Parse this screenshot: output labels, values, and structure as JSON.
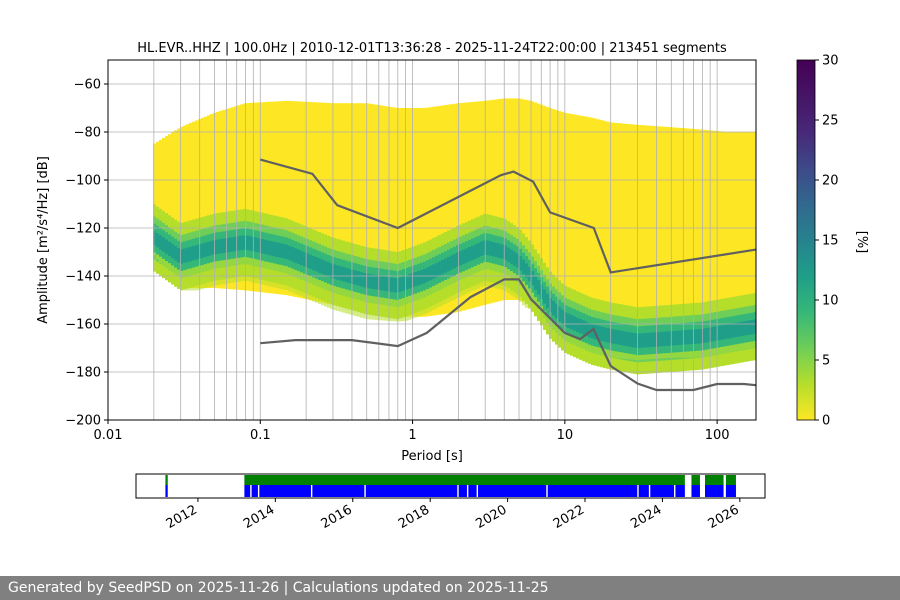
{
  "chart_data": [
    {
      "type": "heatmap",
      "title": "HL.EVR..HHZ | 100.0Hz | 2010-12-01T13:36:28 - 2025-11-24T22:00:00 | 213451 segments",
      "xlabel": "Period [s]",
      "ylabel": "Amplitude [m²/s⁴/Hz] [dB]",
      "x_scale": "log",
      "xlim": [
        0.01,
        180
      ],
      "ylim": [
        -200,
        -50
      ],
      "x_ticks": [
        0.01,
        0.1,
        1,
        10,
        100
      ],
      "x_tick_labels": [
        "0.01",
        "0.1",
        "1",
        "10",
        "100"
      ],
      "y_ticks": [
        -200,
        -180,
        -160,
        -140,
        -120,
        -100,
        -80,
        -60
      ],
      "y_tick_labels": [
        "−200",
        "−180",
        "−160",
        "−140",
        "−120",
        "−100",
        "−80",
        "−60"
      ],
      "grid": true,
      "colormap": "viridis",
      "colorbar": {
        "label": "[%]",
        "range": [
          0,
          30
        ],
        "ticks": [
          0,
          5,
          10,
          15,
          20,
          25,
          30
        ]
      },
      "density_band": {
        "period": [
          0.02,
          0.03,
          0.05,
          0.08,
          0.15,
          0.3,
          0.5,
          0.8,
          1.2,
          2,
          3,
          4,
          5,
          6,
          8,
          10,
          15,
          20,
          30,
          50,
          80,
          120,
          180
        ],
        "mode_db": [
          -124,
          -132,
          -128,
          -126,
          -130,
          -138,
          -142,
          -144,
          -140,
          -133,
          -128,
          -130,
          -134,
          -140,
          -152,
          -158,
          -163,
          -165,
          -167,
          -166,
          -165,
          -163,
          -161
        ],
        "outer_low_db": [
          -130,
          -145,
          -145,
          -146,
          -148,
          -152,
          -155,
          -157,
          -157,
          -155,
          -152,
          -150,
          -150,
          -152,
          -160,
          -166,
          -170,
          -172,
          -173,
          -172,
          -172,
          -171,
          -169
        ],
        "outer_high_db": [
          -85,
          -78,
          -72,
          -68,
          -67,
          -68,
          -68,
          -70,
          -70,
          -68,
          -67,
          -66,
          -66,
          -67,
          -70,
          -72,
          -74,
          -76,
          -77,
          -78,
          -79,
          -80,
          -80
        ],
        "core_low_db": [
          -131,
          -146,
          -146,
          -147,
          -150,
          -155,
          -158,
          -159,
          -158,
          -156,
          -153,
          -152,
          -152,
          -154,
          -162,
          -168,
          -172,
          -174,
          -175,
          -174,
          -174,
          -172,
          -170
        ]
      },
      "series": [
        {
          "x": [
            0.1,
            0.22,
            0.32,
            0.8,
            3.8,
            4.6,
            6.2,
            8,
            15.5,
            20,
            180
          ],
          "y": [
            -91.5,
            -97.4,
            -110.5,
            -120,
            -98,
            -96.5,
            -100.7,
            -113.5,
            -120,
            -138.5,
            -129
          ],
          "color": "#606060"
        },
        {
          "x": [
            0.1,
            0.17,
            0.4,
            0.8,
            1.24,
            2.4,
            4.0,
            5.0,
            6.0,
            10.0,
            12.6,
            15.4,
            20.0,
            30.0,
            40.0,
            70.0,
            100.0,
            150.0,
            180.0
          ],
          "y": [
            -168,
            -166.7,
            -166.7,
            -169.2,
            -163.7,
            -148.8,
            -141.4,
            -141.4,
            -149.7,
            -163.7,
            -166.3,
            -162.1,
            -177.5,
            -184.8,
            -187.5,
            -187.5,
            -185,
            -185,
            -185.5
          ],
          "color": "#606060"
        }
      ]
    },
    {
      "type": "timeline",
      "x_tick_labels": [
        "2012",
        "2014",
        "2016",
        "2018",
        "2020",
        "2022",
        "2024",
        "2026"
      ],
      "x_ticks": [
        2012,
        2014,
        2016,
        2018,
        2020,
        2022,
        2024,
        2026
      ],
      "xlim": [
        2010.4,
        2026.65
      ],
      "series": [
        {
          "name": "green",
          "color": "#008000",
          "coverage": [
            [
              2011.16,
              2011.22
            ],
            [
              2013.2,
              2025.9
            ]
          ]
        },
        {
          "name": "blue",
          "color": "#0000ff",
          "coverage": [
            [
              2011.16,
              2011.22
            ],
            [
              2013.2,
              2025.9
            ]
          ]
        }
      ],
      "gaps": {
        "both": [
          [
            2024.58,
            2024.75
          ],
          [
            2024.97,
            2025.1
          ],
          [
            2025.58,
            2025.64
          ]
        ],
        "blue_only": [
          2013.35,
          2013.55,
          2014.92,
          2016.3,
          2018.7,
          2018.95,
          2019.2,
          2021.0,
          2023.35,
          2023.65,
          2024.3
        ]
      }
    }
  ],
  "footer": {
    "text": "Generated by SeedPSD on 2025-11-26 | Calculations updated on 2025-11-25"
  }
}
